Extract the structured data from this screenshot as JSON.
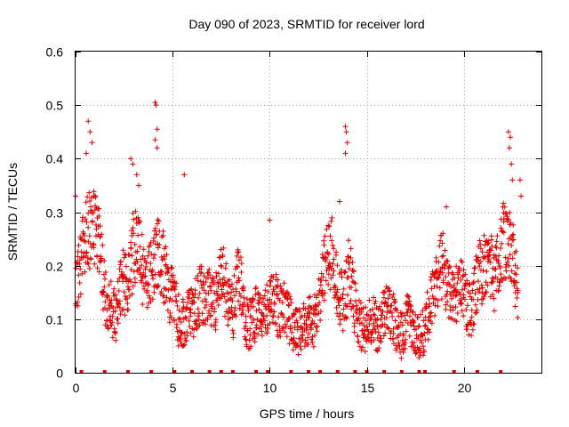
{
  "chart_data": {
    "type": "scatter",
    "title": "Day 090 of 2023, SRMTID for receiver lord",
    "xlabel": "GPS time / hours",
    "ylabel": "SRMTID / TECUs",
    "xlim": [
      0,
      24
    ],
    "ylim": [
      0,
      0.6
    ],
    "xticks": [
      0,
      5,
      10,
      15,
      20
    ],
    "yticks": [
      0,
      0.1,
      0.2,
      0.3,
      0.4,
      0.5,
      0.6
    ],
    "grid": true,
    "marker": "+",
    "series": [
      {
        "name": "SRMTID",
        "color": "#e00000",
        "samples_per_hour": 24,
        "profile": [
          [
            0.0,
            0.17
          ],
          [
            0.3,
            0.21
          ],
          [
            0.6,
            0.26
          ],
          [
            0.9,
            0.27
          ],
          [
            1.2,
            0.24
          ],
          [
            1.5,
            0.15
          ],
          [
            1.8,
            0.12
          ],
          [
            2.1,
            0.11
          ],
          [
            2.4,
            0.18
          ],
          [
            2.7,
            0.15
          ],
          [
            3.0,
            0.24
          ],
          [
            3.3,
            0.23
          ],
          [
            3.6,
            0.15
          ],
          [
            3.9,
            0.19
          ],
          [
            4.2,
            0.23
          ],
          [
            4.5,
            0.2
          ],
          [
            4.8,
            0.15
          ],
          [
            5.1,
            0.13
          ],
          [
            5.4,
            0.08
          ],
          [
            5.7,
            0.1
          ],
          [
            6.0,
            0.11
          ],
          [
            6.3,
            0.14
          ],
          [
            6.6,
            0.15
          ],
          [
            6.9,
            0.14
          ],
          [
            7.2,
            0.12
          ],
          [
            7.5,
            0.2
          ],
          [
            7.8,
            0.14
          ],
          [
            8.1,
            0.11
          ],
          [
            8.4,
            0.19
          ],
          [
            8.7,
            0.1
          ],
          [
            9.0,
            0.09
          ],
          [
            9.3,
            0.11
          ],
          [
            9.6,
            0.1
          ],
          [
            9.9,
            0.13
          ],
          [
            10.2,
            0.15
          ],
          [
            10.5,
            0.11
          ],
          [
            10.8,
            0.12
          ],
          [
            11.1,
            0.09
          ],
          [
            11.4,
            0.08
          ],
          [
            11.7,
            0.08
          ],
          [
            12.0,
            0.1
          ],
          [
            12.3,
            0.09
          ],
          [
            12.6,
            0.15
          ],
          [
            12.9,
            0.21
          ],
          [
            13.2,
            0.23
          ],
          [
            13.5,
            0.16
          ],
          [
            13.8,
            0.13
          ],
          [
            14.1,
            0.19
          ],
          [
            14.4,
            0.12
          ],
          [
            14.7,
            0.09
          ],
          [
            15.0,
            0.08
          ],
          [
            15.3,
            0.1
          ],
          [
            15.6,
            0.08
          ],
          [
            15.9,
            0.11
          ],
          [
            16.2,
            0.12
          ],
          [
            16.5,
            0.09
          ],
          [
            16.8,
            0.07
          ],
          [
            17.1,
            0.1
          ],
          [
            17.4,
            0.07
          ],
          [
            17.7,
            0.06
          ],
          [
            18.0,
            0.08
          ],
          [
            18.3,
            0.14
          ],
          [
            18.6,
            0.17
          ],
          [
            18.9,
            0.2
          ],
          [
            19.2,
            0.15
          ],
          [
            19.5,
            0.13
          ],
          [
            19.8,
            0.17
          ],
          [
            20.1,
            0.13
          ],
          [
            20.4,
            0.11
          ],
          [
            20.7,
            0.18
          ],
          [
            21.0,
            0.19
          ],
          [
            21.3,
            0.21
          ],
          [
            21.6,
            0.17
          ],
          [
            21.9,
            0.24
          ],
          [
            22.2,
            0.25
          ],
          [
            22.5,
            0.22
          ],
          [
            22.8,
            0.16
          ]
        ],
        "peaks": [
          [
            0.65,
            0.47
          ],
          [
            0.75,
            0.45
          ],
          [
            0.85,
            0.43
          ],
          [
            0.55,
            0.41
          ],
          [
            2.85,
            0.4
          ],
          [
            2.95,
            0.39
          ],
          [
            3.15,
            0.37
          ],
          [
            3.25,
            0.35
          ],
          [
            4.1,
            0.505
          ],
          [
            4.15,
            0.5
          ],
          [
            4.2,
            0.455
          ],
          [
            4.1,
            0.435
          ],
          [
            4.2,
            0.42
          ],
          [
            13.9,
            0.46
          ],
          [
            13.95,
            0.45
          ],
          [
            14.0,
            0.43
          ],
          [
            13.9,
            0.41
          ],
          [
            22.3,
            0.45
          ],
          [
            22.4,
            0.44
          ],
          [
            22.35,
            0.42
          ],
          [
            22.45,
            0.39
          ],
          [
            22.5,
            0.36
          ],
          [
            22.9,
            0.36
          ],
          [
            22.95,
            0.33
          ],
          [
            19.1,
            0.31
          ],
          [
            5.6,
            0.37
          ],
          [
            13.6,
            0.32
          ],
          [
            10.0,
            0.285
          ],
          [
            0.0,
            0.33
          ]
        ],
        "baseline_markers_x": [
          0.3,
          1.5,
          2.7,
          3.9,
          5.1,
          6.0,
          6.9,
          7.5,
          8.1,
          9.3,
          9.9,
          11.1,
          12.0,
          12.6,
          13.5,
          14.4,
          15.0,
          15.9,
          16.8,
          17.7,
          18.0,
          19.5,
          20.7,
          21.9
        ]
      }
    ]
  }
}
